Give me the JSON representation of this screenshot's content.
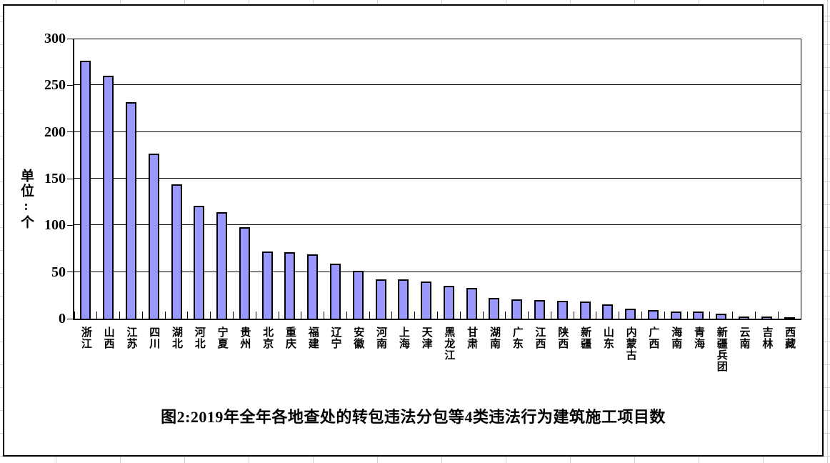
{
  "chart_data": {
    "type": "bar",
    "title": "图2:2019年全年各地查处的转包违法分包等4类违法行为建筑施工项目数",
    "ylabel": "单位:个",
    "categories": [
      "浙江",
      "山西",
      "江苏",
      "四川",
      "湖北",
      "河北",
      "宁夏",
      "贵州",
      "北京",
      "重庆",
      "福建",
      "辽宁",
      "安徽",
      "河南",
      "上海",
      "天津",
      "黑龙江",
      "甘肃",
      "湖南",
      "广东",
      "江西",
      "陕西",
      "新疆",
      "山东",
      "内蒙古",
      "广西",
      "海南",
      "青海",
      "新疆兵团",
      "云南",
      "吉林",
      "西藏"
    ],
    "values": [
      276,
      260,
      232,
      177,
      144,
      121,
      114,
      98,
      72,
      71,
      69,
      59,
      51,
      42,
      42,
      40,
      35,
      33,
      22,
      21,
      20,
      19,
      18,
      15,
      11,
      9,
      8,
      8,
      5,
      2,
      2,
      1
    ],
    "yticks": [
      0,
      50,
      100,
      150,
      200,
      250,
      300
    ],
    "ylim": [
      0,
      300
    ],
    "grid": true,
    "legend": "none",
    "colors": {
      "bar_fill": "#9999FF",
      "bar_border": "#000000",
      "axis": "#000000",
      "worksheet_grid": "#D0D0D0",
      "background": "#FFFFFF"
    }
  }
}
